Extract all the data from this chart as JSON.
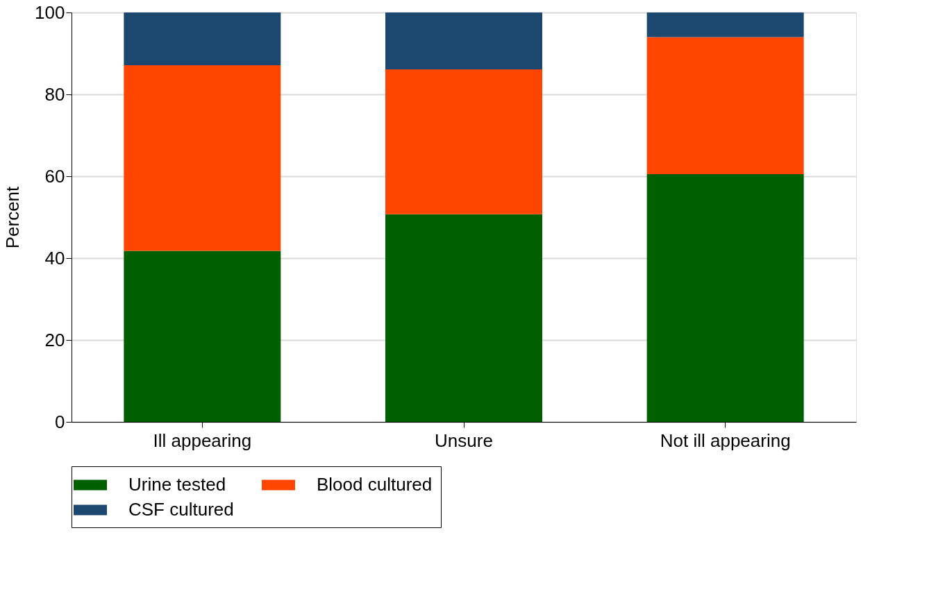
{
  "chart_data": {
    "type": "bar",
    "stacked": true,
    "ylabel": "Percent",
    "categories": [
      "Ill appearing",
      "Unsure",
      "Not ill appearing"
    ],
    "series": [
      {
        "name": "Urine tested",
        "color": "#006000",
        "values": [
          41.8,
          50.7,
          60.5
        ]
      },
      {
        "name": "Blood cultured",
        "color": "#ff4500",
        "values": [
          45.3,
          35.4,
          33.5
        ]
      },
      {
        "name": "CSF cultured",
        "color": "#1c4870",
        "values": [
          12.9,
          13.9,
          6.0
        ]
      }
    ],
    "ylim": [
      0,
      100
    ],
    "yticks": [
      0,
      20,
      40,
      60,
      80,
      100
    ],
    "grid": "y",
    "legend": "bottom"
  }
}
